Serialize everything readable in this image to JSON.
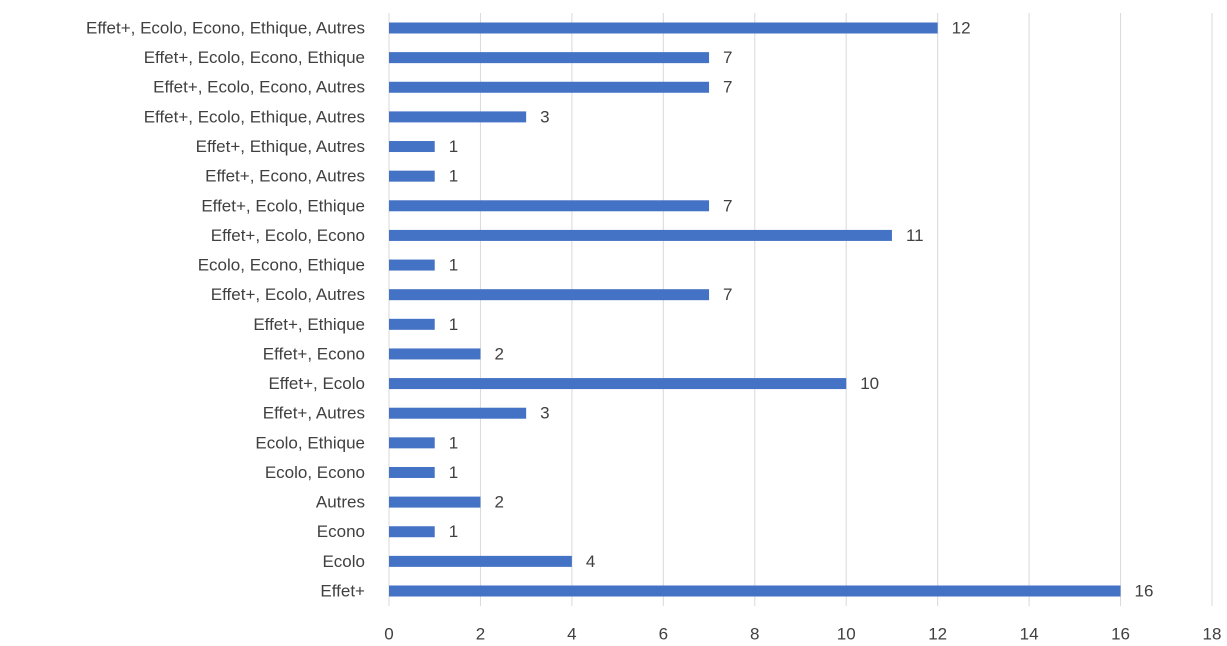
{
  "chart_data": {
    "type": "barh",
    "categories": [
      "Effet+",
      "Ecolo",
      "Econo",
      "Autres",
      "Ecolo, Econo",
      "Ecolo, Ethique",
      "Effet+, Autres",
      "Effet+, Ecolo",
      "Effet+, Econo",
      "Effet+, Ethique",
      "Effet+, Ecolo, Autres",
      "Ecolo, Econo, Ethique",
      "Effet+, Ecolo, Econo",
      "Effet+, Ecolo, Ethique",
      "Effet+, Econo, Autres",
      "Effet+, Ethique, Autres",
      "Effet+, Ecolo, Ethique, Autres",
      "Effet+, Ecolo, Econo, Autres",
      "Effet+, Ecolo, Econo, Ethique",
      "Effet+, Ecolo, Econo, Ethique, Autres"
    ],
    "values": [
      16,
      4,
      1,
      2,
      1,
      1,
      3,
      10,
      2,
      1,
      7,
      1,
      11,
      7,
      1,
      1,
      3,
      7,
      7,
      12
    ],
    "color": "#4472c4",
    "xlim": [
      0,
      18
    ],
    "xticks": [
      0,
      2,
      4,
      6,
      8,
      10,
      12,
      14,
      16,
      18
    ],
    "grid": true,
    "data_labels": true
  }
}
